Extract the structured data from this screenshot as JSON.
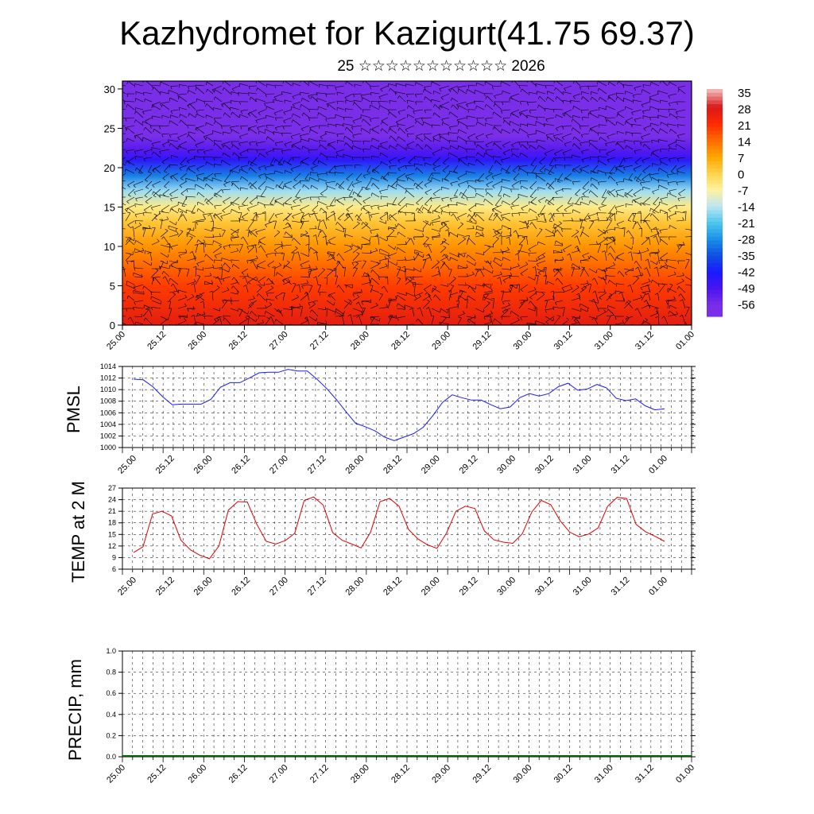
{
  "title": "Kazhydromet for Kazigurt(41.75 69.37)",
  "subtitle": "25 ☆☆☆☆☆☆☆☆☆☆☆ 2026",
  "colors": {
    "pmsl_line": "#1a1aff",
    "temp_line": "#e00000",
    "grid": "#000000",
    "precip_baseline": "#006400"
  },
  "chart_data": [
    {
      "type": "heatmap",
      "name": "temperature-wind cross-section",
      "x_tick_labels": [
        "25.00",
        "25.12",
        "26.00",
        "26.12",
        "27.00",
        "27.12",
        "28.00",
        "28.12",
        "29.00",
        "29.12",
        "30.00",
        "30.12",
        "31.00",
        "31.12",
        "01.00"
      ],
      "ylim": [
        0,
        31
      ],
      "y_ticks": [
        0,
        5,
        10,
        15,
        20,
        25,
        30
      ],
      "colorbar_labels": [
        "35",
        "28",
        "21",
        "14",
        "7",
        "0",
        "-7",
        "-14",
        "-21",
        "-28",
        "-35",
        "-42",
        "-49",
        "-56"
      ],
      "color_levels": [
        {
          "level": 35,
          "color": "#f2b0b0"
        },
        {
          "level": 28,
          "color": "#d81818"
        },
        {
          "level": 21,
          "color": "#ff2a00"
        },
        {
          "level": 14,
          "color": "#ff6a00"
        },
        {
          "level": 7,
          "color": "#ffa500"
        },
        {
          "level": 0,
          "color": "#ffd24a"
        },
        {
          "level": -7,
          "color": "#fff3a0"
        },
        {
          "level": -14,
          "color": "#bfe6f2"
        },
        {
          "level": -21,
          "color": "#4fc8ee"
        },
        {
          "level": -28,
          "color": "#1a90e8"
        },
        {
          "level": -35,
          "color": "#1050e0"
        },
        {
          "level": -42,
          "color": "#1a1aff"
        },
        {
          "level": -49,
          "color": "#4a14f0"
        },
        {
          "level": -56,
          "color": "#7a2ee8"
        }
      ],
      "vertical_profile": [
        {
          "height": 0,
          "value": 26
        },
        {
          "height": 5,
          "value": 19
        },
        {
          "height": 10,
          "value": 9
        },
        {
          "height": 13,
          "value": 2
        },
        {
          "height": 15,
          "value": -5
        },
        {
          "height": 17,
          "value": -16
        },
        {
          "height": 19,
          "value": -30
        },
        {
          "height": 21,
          "value": -45
        },
        {
          "height": 22,
          "value": -50
        },
        {
          "height": 24,
          "value": -57
        },
        {
          "height": 31,
          "value": -58
        }
      ]
    },
    {
      "type": "line",
      "name": "PMSL",
      "ylabel": "PMSL",
      "ylim": [
        1000,
        1014
      ],
      "y_ticks": [
        1000,
        1002,
        1004,
        1006,
        1008,
        1010,
        1012,
        1014
      ],
      "x_tick_labels": [
        "25.00",
        "25.12",
        "26.00",
        "26.12",
        "27.00",
        "27.12",
        "28.00",
        "28.12",
        "29.00",
        "29.12",
        "30.00",
        "30.12",
        "31.00",
        "31.12",
        "01.00"
      ],
      "x_range": [
        0,
        24
      ],
      "values": [
        1011.8,
        1011.7,
        1010.5,
        1008.8,
        1007.4,
        1007.5,
        1007.5,
        1007.5,
        1008.3,
        1010.4,
        1011.2,
        1011.2,
        1012.0,
        1012.9,
        1013.0,
        1013.0,
        1013.5,
        1013.2,
        1013.2,
        1011.8,
        1010.2,
        1008.3,
        1006.2,
        1004.2,
        1003.6,
        1002.9,
        1001.8,
        1001.2,
        1001.8,
        1002.4,
        1003.5,
        1005.5,
        1007.8,
        1009.1,
        1008.6,
        1008.2,
        1008.2,
        1007.4,
        1006.7,
        1007.0,
        1008.6,
        1009.3,
        1008.9,
        1009.3,
        1010.5,
        1011.1,
        1009.9,
        1010.1,
        1010.9,
        1010.3,
        1008.5,
        1008.1,
        1008.4,
        1007.2,
        1006.5,
        1006.7
      ]
    },
    {
      "type": "line",
      "name": "TEMP at 2 M",
      "ylabel": "TEMP at 2 M",
      "ylim": [
        6,
        27
      ],
      "y_ticks": [
        6,
        9,
        12,
        15,
        18,
        21,
        24,
        27
      ],
      "x_tick_labels": [
        "25.00",
        "25.12",
        "26.00",
        "26.12",
        "27.00",
        "27.12",
        "28.00",
        "28.12",
        "29.00",
        "29.12",
        "30.00",
        "30.12",
        "31.00",
        "31.12",
        "01.00"
      ],
      "x_range": [
        0,
        24
      ],
      "values": [
        10.3,
        11.8,
        20.3,
        21.0,
        19.8,
        13.5,
        11.0,
        9.6,
        8.7,
        12.0,
        21.3,
        23.5,
        23.4,
        17.6,
        13.2,
        12.5,
        13.4,
        15.3,
        23.8,
        24.7,
        22.6,
        15.5,
        13.5,
        12.5,
        11.5,
        15.6,
        23.5,
        24.3,
        22.3,
        16.3,
        13.8,
        12.3,
        11.4,
        15.3,
        21.0,
        22.3,
        21.7,
        15.9,
        13.6,
        13.0,
        12.7,
        15.2,
        20.8,
        23.8,
        22.7,
        18.5,
        15.6,
        14.4,
        15.1,
        16.7,
        22.3,
        24.6,
        24.3,
        17.6,
        15.7,
        14.5,
        13.2
      ]
    },
    {
      "type": "bar",
      "name": "PRECIP, mm",
      "ylabel": "PRECIP, mm",
      "ylim": [
        0,
        1.0
      ],
      "y_ticks": [
        0,
        0.2,
        0.4,
        0.6,
        0.8,
        1.0
      ],
      "y_tick_labels": [
        "0.0",
        "0.2",
        "0.4",
        "0.6",
        "0.8",
        "1.0"
      ],
      "x_tick_labels": [
        "25.00",
        "25.12",
        "26.00",
        "26.12",
        "27.00",
        "27.12",
        "28.00",
        "28.12",
        "29.00",
        "29.12",
        "30.00",
        "30.12",
        "31.00",
        "31.12",
        "01.00"
      ],
      "values": []
    }
  ]
}
